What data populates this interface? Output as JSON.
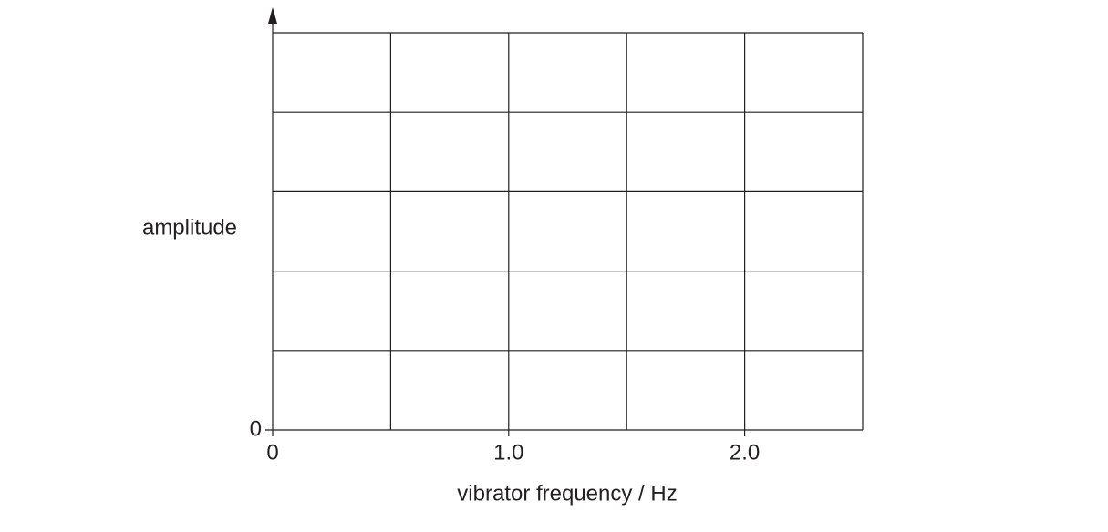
{
  "chart_data": {
    "type": "line",
    "xlabel": "vibrator frequency / Hz",
    "ylabel": "amplitude",
    "xlim": [
      0,
      2.5
    ],
    "xticks": [
      0,
      {
        "value": 1,
        "label": "1.0"
      },
      {
        "value": 2,
        "label": "2.0"
      }
    ],
    "xgrid": [
      0.5,
      1,
      1.5,
      2,
      2.5
    ],
    "ylim": [
      0,
      5
    ],
    "yticks": [
      0
    ],
    "ygrid": [
      1,
      2,
      3,
      4,
      5
    ],
    "grid": true,
    "series": []
  }
}
